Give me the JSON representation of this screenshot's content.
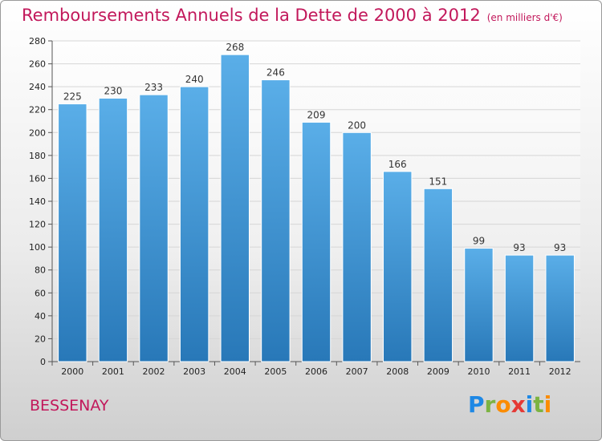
{
  "header": {
    "title": "Remboursements Annuels de la Dette de 2000 à 2012",
    "subtitle": "(en milliers d'€)"
  },
  "footer": {
    "commune": "BESSENAY",
    "logo_text": "Proxiti"
  },
  "colors": {
    "title": "#c2185b",
    "bar_top": "#5aaee8",
    "bar_bottom": "#2878b8",
    "grid": "#d6d6d6",
    "logo_letters": [
      "#1e88e5",
      "#7cb342",
      "#fb8c00",
      "#e53935",
      "#1e88e5",
      "#7cb342",
      "#fb8c00"
    ]
  },
  "chart_data": {
    "type": "bar",
    "title": "Remboursements Annuels de la Dette de 2000 à 2012",
    "subtitle": "(en milliers d'€)",
    "xlabel": "",
    "ylabel": "",
    "categories": [
      "2000",
      "2001",
      "2002",
      "2003",
      "2004",
      "2005",
      "2006",
      "2007",
      "2008",
      "2009",
      "2010",
      "2011",
      "2012"
    ],
    "values": [
      225,
      230,
      233,
      240,
      268,
      246,
      209,
      200,
      166,
      151,
      99,
      93,
      93
    ],
    "ylim": [
      0,
      280
    ],
    "yticks": [
      0,
      20,
      40,
      60,
      80,
      100,
      120,
      140,
      160,
      180,
      200,
      220,
      240,
      260,
      280
    ],
    "grid": true,
    "legend": "none",
    "data_labels": true
  }
}
